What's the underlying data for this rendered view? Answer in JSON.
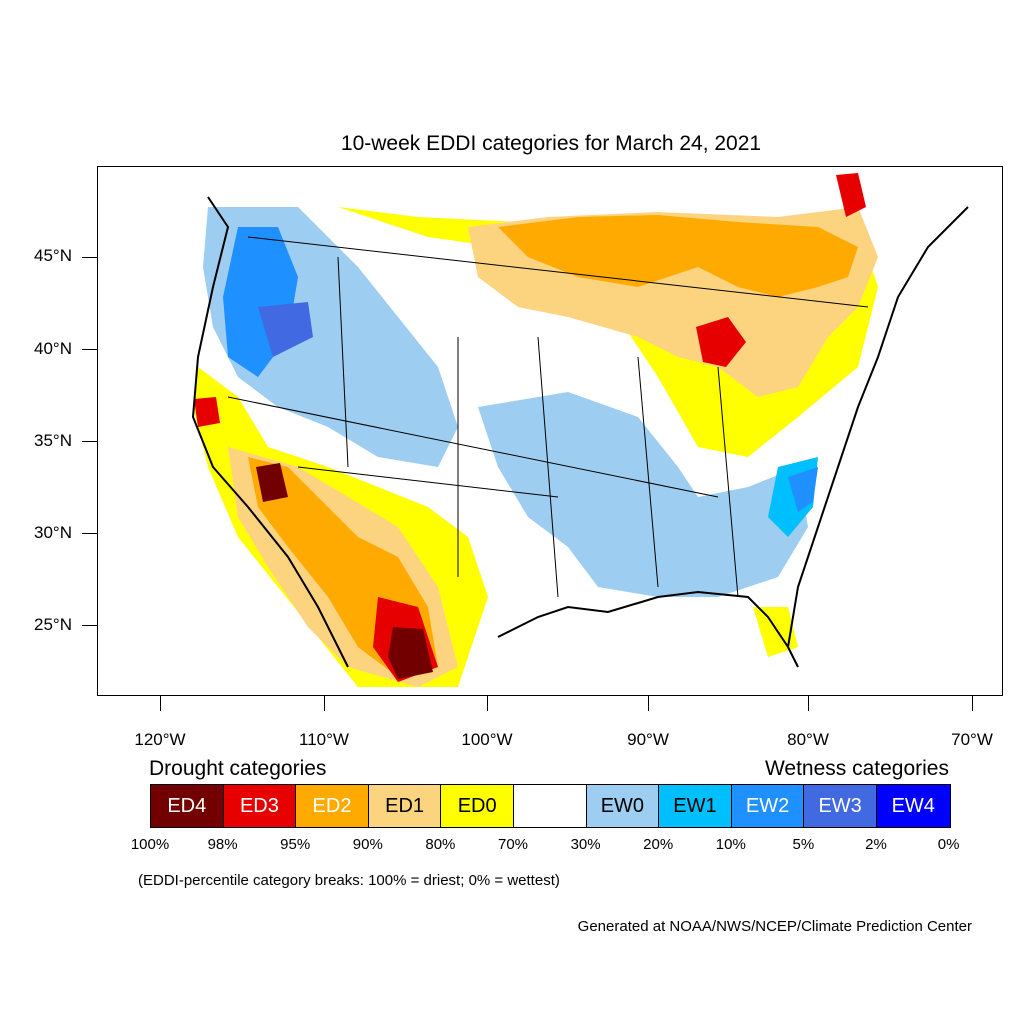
{
  "title": "10-week EDDI categories for March 24, 2021",
  "axes": {
    "lat_labels": [
      "45°N",
      "40°N",
      "35°N",
      "30°N",
      "25°N"
    ],
    "lon_labels": [
      "120°W",
      "110°W",
      "100°W",
      "90°W",
      "80°W",
      "70°W"
    ]
  },
  "legend": {
    "drought_heading": "Drought categories",
    "wetness_heading": "Wetness categories",
    "categories": [
      {
        "label": "ED4",
        "color": "#730000",
        "text_color": "#ffffff"
      },
      {
        "label": "ED3",
        "color": "#e60000",
        "text_color": "#ffffff"
      },
      {
        "label": "ED2",
        "color": "#ffaa00",
        "text_color": "#ffffff"
      },
      {
        "label": "ED1",
        "color": "#fcd37f",
        "text_color": "#000000"
      },
      {
        "label": "ED0",
        "color": "#ffff00",
        "text_color": "#000000"
      },
      {
        "label": "",
        "color": "#ffffff",
        "text_color": "#000000"
      },
      {
        "label": "EW0",
        "color": "#9dcdf0",
        "text_color": "#000000"
      },
      {
        "label": "EW1",
        "color": "#00bfff",
        "text_color": "#000000"
      },
      {
        "label": "EW2",
        "color": "#1e90ff",
        "text_color": "#ffffff"
      },
      {
        "label": "EW3",
        "color": "#4169e1",
        "text_color": "#ffffff"
      },
      {
        "label": "EW4",
        "color": "#0000ff",
        "text_color": "#ffffff"
      }
    ],
    "percent_breaks": [
      "100%",
      "98%",
      "95%",
      "90%",
      "80%",
      "70%",
      "30%",
      "20%",
      "10%",
      "5%",
      "2%",
      "0%"
    ]
  },
  "note": "(EDDI-percentile category breaks: 100% = driest; 0% = wettest)",
  "credit": "Generated at NOAA/NWS/NCEP/Climate Prediction Center"
}
